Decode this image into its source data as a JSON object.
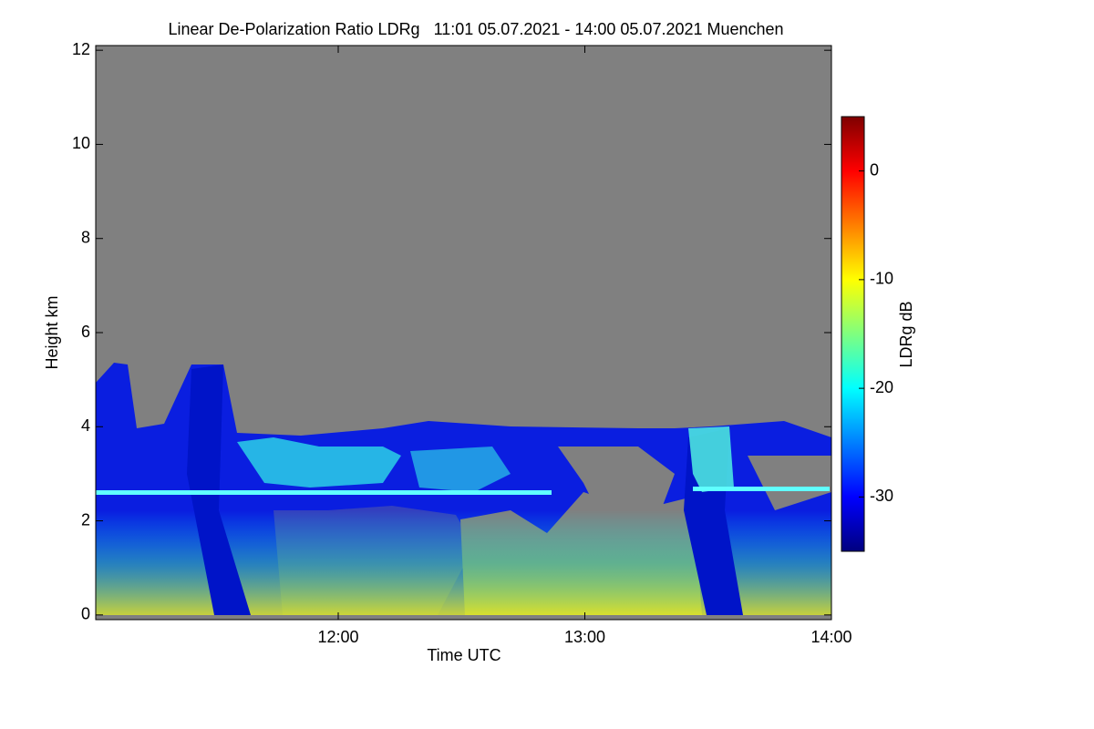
{
  "chart_data": {
    "type": "heatmap",
    "title": "Linear De-Polarization Ratio LDRg   11:01 05.07.2021 - 14:00 05.07.2021 Muenchen",
    "xlabel": "Time UTC",
    "ylabel": "Height km",
    "xlim": [
      11.0167,
      14.0
    ],
    "xticks": [
      {
        "value": 12,
        "label": "12:00"
      },
      {
        "value": 13,
        "label": "13:00"
      },
      {
        "value": 14,
        "label": "14:00"
      }
    ],
    "ylim": [
      -0.1,
      12.1
    ],
    "yticks": [
      0,
      2,
      4,
      6,
      8,
      10,
      12
    ],
    "background": "#808080",
    "colorbar": {
      "label": "LDRg dB",
      "lim": [
        -35,
        5
      ],
      "ticks": [
        0,
        -10,
        -20,
        -30
      ],
      "colormap": [
        "#00007f",
        "#0000ff",
        "#007fff",
        "#00ffff",
        "#7fff7f",
        "#ffff00",
        "#ff7f00",
        "#ff0000",
        "#7f0000"
      ]
    }
  }
}
